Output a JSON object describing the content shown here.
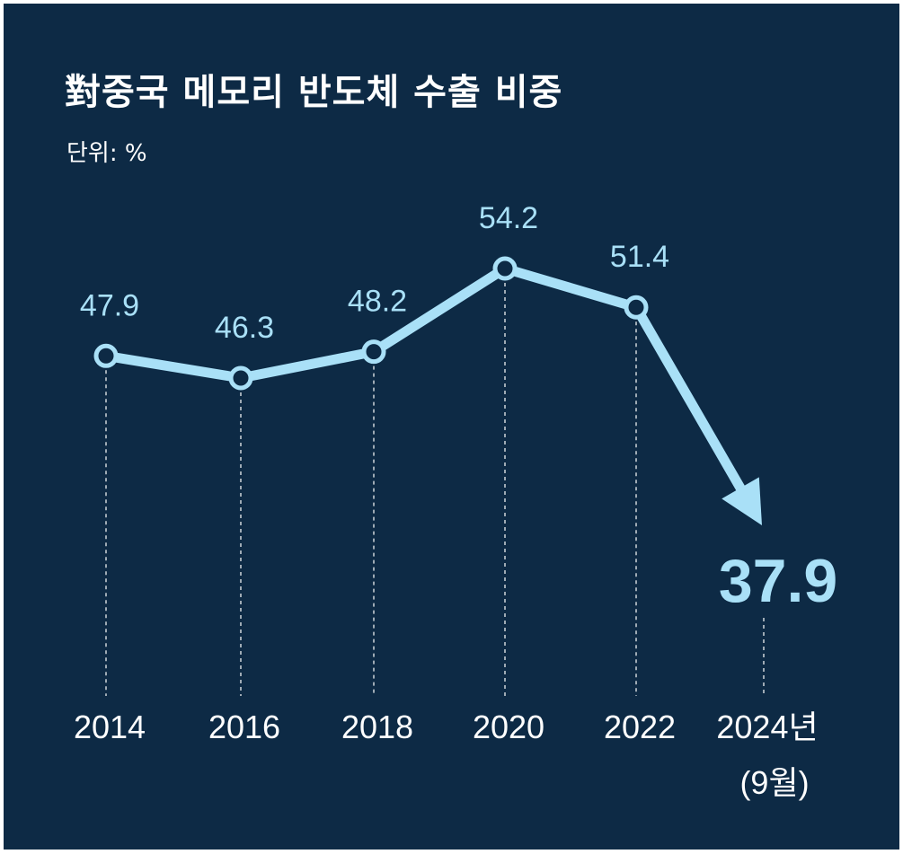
{
  "title": "對중국 메모리 반도체 수출 비중",
  "unit": "단위: %",
  "colors": {
    "background": "#0d2a45",
    "line": "#a9e0f7",
    "text": "#ffffff"
  },
  "chart_data": {
    "type": "line",
    "title": "對중국 메모리 반도체 수출 비중",
    "unit": "단위: %",
    "categories": [
      "2014",
      "2016",
      "2018",
      "2020",
      "2022",
      "2024년"
    ],
    "category_sublabels": [
      "",
      "",
      "",
      "",
      "",
      "(9월)"
    ],
    "values": [
      47.9,
      46.3,
      48.2,
      54.2,
      51.4,
      37.9
    ],
    "value_labels": [
      "47.9",
      "46.3",
      "48.2",
      "54.2",
      "51.4",
      "37.9"
    ],
    "last_point_style": "arrow",
    "grid": false,
    "legend": "none"
  }
}
